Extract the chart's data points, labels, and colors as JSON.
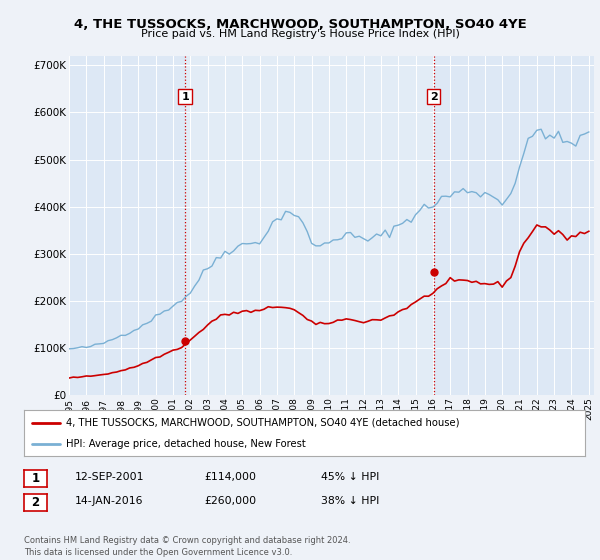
{
  "title": "4, THE TUSSOCKS, MARCHWOOD, SOUTHAMPTON, SO40 4YE",
  "subtitle": "Price paid vs. HM Land Registry's House Price Index (HPI)",
  "background_color": "#eef2f8",
  "plot_bg_color": "#dde8f5",
  "plot_bg_highlight": "#e8f0f8",
  "xlim_start": 1995.0,
  "xlim_end": 2025.3,
  "ylim_min": 0,
  "ylim_max": 720000,
  "yticks": [
    0,
    100000,
    200000,
    300000,
    400000,
    500000,
    600000,
    700000
  ],
  "ytick_labels": [
    "£0",
    "£100K",
    "£200K",
    "£300K",
    "£400K",
    "£500K",
    "£600K",
    "£700K"
  ],
  "xtick_years": [
    1995,
    1996,
    1997,
    1998,
    1999,
    2000,
    2001,
    2002,
    2003,
    2004,
    2005,
    2006,
    2007,
    2008,
    2009,
    2010,
    2011,
    2012,
    2013,
    2014,
    2015,
    2016,
    2017,
    2018,
    2019,
    2020,
    2021,
    2022,
    2023,
    2024,
    2025
  ],
  "hpi_color": "#7ab0d4",
  "price_color": "#cc0000",
  "vline_color": "#cc0000",
  "sale1_x": 2001.7,
  "sale1_y": 114000,
  "sale2_x": 2016.04,
  "sale2_y": 260000,
  "legend_line1": "4, THE TUSSOCKS, MARCHWOOD, SOUTHAMPTON, SO40 4YE (detached house)",
  "legend_line2": "HPI: Average price, detached house, New Forest",
  "table_row1": [
    "1",
    "12-SEP-2001",
    "£114,000",
    "45% ↓ HPI"
  ],
  "table_row2": [
    "2",
    "14-JAN-2016",
    "£260,000",
    "38% ↓ HPI"
  ],
  "footer": "Contains HM Land Registry data © Crown copyright and database right 2024.\nThis data is licensed under the Open Government Licence v3.0.",
  "hpi_years": [
    1995.0,
    1995.25,
    1995.5,
    1995.75,
    1996.0,
    1996.25,
    1996.5,
    1996.75,
    1997.0,
    1997.25,
    1997.5,
    1997.75,
    1998.0,
    1998.25,
    1998.5,
    1998.75,
    1999.0,
    1999.25,
    1999.5,
    1999.75,
    2000.0,
    2000.25,
    2000.5,
    2000.75,
    2001.0,
    2001.25,
    2001.5,
    2001.75,
    2002.0,
    2002.25,
    2002.5,
    2002.75,
    2003.0,
    2003.25,
    2003.5,
    2003.75,
    2004.0,
    2004.25,
    2004.5,
    2004.75,
    2005.0,
    2005.25,
    2005.5,
    2005.75,
    2006.0,
    2006.25,
    2006.5,
    2006.75,
    2007.0,
    2007.25,
    2007.5,
    2007.75,
    2008.0,
    2008.25,
    2008.5,
    2008.75,
    2009.0,
    2009.25,
    2009.5,
    2009.75,
    2010.0,
    2010.25,
    2010.5,
    2010.75,
    2011.0,
    2011.25,
    2011.5,
    2011.75,
    2012.0,
    2012.25,
    2012.5,
    2012.75,
    2013.0,
    2013.25,
    2013.5,
    2013.75,
    2014.0,
    2014.25,
    2014.5,
    2014.75,
    2015.0,
    2015.25,
    2015.5,
    2015.75,
    2016.0,
    2016.25,
    2016.5,
    2016.75,
    2017.0,
    2017.25,
    2017.5,
    2017.75,
    2018.0,
    2018.25,
    2018.5,
    2018.75,
    2019.0,
    2019.25,
    2019.5,
    2019.75,
    2020.0,
    2020.25,
    2020.5,
    2020.75,
    2021.0,
    2021.25,
    2021.5,
    2021.75,
    2022.0,
    2022.25,
    2022.5,
    2022.75,
    2023.0,
    2023.25,
    2023.5,
    2023.75,
    2024.0,
    2024.25,
    2024.5,
    2024.75,
    2025.0
  ],
  "hpi_values": [
    97000,
    98500,
    99000,
    100000,
    101000,
    103000,
    105000,
    107000,
    110000,
    114000,
    118000,
    122000,
    126000,
    130000,
    134000,
    138000,
    142000,
    148000,
    154000,
    160000,
    166000,
    172000,
    178000,
    184000,
    190000,
    196000,
    202000,
    208000,
    218000,
    232000,
    246000,
    258000,
    268000,
    278000,
    288000,
    296000,
    304000,
    308000,
    312000,
    315000,
    318000,
    320000,
    322000,
    325000,
    328000,
    338000,
    350000,
    362000,
    372000,
    382000,
    388000,
    390000,
    385000,
    375000,
    360000,
    342000,
    326000,
    318000,
    315000,
    318000,
    325000,
    330000,
    335000,
    338000,
    340000,
    338000,
    335000,
    332000,
    330000,
    330000,
    332000,
    334000,
    338000,
    342000,
    348000,
    354000,
    360000,
    366000,
    372000,
    378000,
    384000,
    390000,
    396000,
    400000,
    404000,
    410000,
    416000,
    420000,
    424000,
    428000,
    430000,
    432000,
    434000,
    434000,
    432000,
    430000,
    428000,
    424000,
    420000,
    416000,
    412000,
    418000,
    430000,
    455000,
    485000,
    510000,
    530000,
    548000,
    560000,
    565000,
    560000,
    552000,
    545000,
    540000,
    538000,
    536000,
    535000,
    538000,
    542000,
    548000,
    552000
  ],
  "price_years": [
    1995.0,
    1995.25,
    1995.5,
    1995.75,
    1996.0,
    1996.25,
    1996.5,
    1996.75,
    1997.0,
    1997.25,
    1997.5,
    1997.75,
    1998.0,
    1998.25,
    1998.5,
    1998.75,
    1999.0,
    1999.25,
    1999.5,
    1999.75,
    2000.0,
    2000.25,
    2000.5,
    2000.75,
    2001.0,
    2001.25,
    2001.5,
    2001.75,
    2002.0,
    2002.25,
    2002.5,
    2002.75,
    2003.0,
    2003.25,
    2003.5,
    2003.75,
    2004.0,
    2004.25,
    2004.5,
    2004.75,
    2005.0,
    2005.25,
    2005.5,
    2005.75,
    2006.0,
    2006.25,
    2006.5,
    2006.75,
    2007.0,
    2007.25,
    2007.5,
    2007.75,
    2008.0,
    2008.25,
    2008.5,
    2008.75,
    2009.0,
    2009.25,
    2009.5,
    2009.75,
    2010.0,
    2010.25,
    2010.5,
    2010.75,
    2011.0,
    2011.25,
    2011.5,
    2011.75,
    2012.0,
    2012.25,
    2012.5,
    2012.75,
    2013.0,
    2013.25,
    2013.5,
    2013.75,
    2014.0,
    2014.25,
    2014.5,
    2014.75,
    2015.0,
    2015.25,
    2015.5,
    2015.75,
    2016.0,
    2016.25,
    2016.5,
    2016.75,
    2017.0,
    2017.25,
    2017.5,
    2017.75,
    2018.0,
    2018.25,
    2018.5,
    2018.75,
    2019.0,
    2019.25,
    2019.5,
    2019.75,
    2020.0,
    2020.25,
    2020.5,
    2020.75,
    2021.0,
    2021.25,
    2021.5,
    2021.75,
    2022.0,
    2022.25,
    2022.5,
    2022.75,
    2023.0,
    2023.25,
    2023.5,
    2023.75,
    2024.0,
    2024.25,
    2024.5,
    2024.75,
    2025.0
  ],
  "price_values": [
    36000,
    37000,
    37500,
    38000,
    39000,
    40000,
    41000,
    42000,
    43500,
    45000,
    47000,
    49000,
    51000,
    53500,
    56000,
    59000,
    62000,
    66000,
    70000,
    74000,
    78000,
    82000,
    86000,
    90000,
    94000,
    98000,
    102000,
    108000,
    116000,
    124000,
    132000,
    140000,
    148000,
    156000,
    162000,
    166000,
    170000,
    172000,
    174000,
    175000,
    176000,
    176500,
    177000,
    177500,
    178000,
    180000,
    183000,
    186000,
    188000,
    188000,
    187000,
    184000,
    180000,
    174000,
    167000,
    160000,
    154000,
    150000,
    149000,
    150000,
    153000,
    156000,
    158000,
    159000,
    160000,
    159000,
    158000,
    157000,
    156000,
    157000,
    158000,
    159000,
    161000,
    163000,
    167000,
    171000,
    176000,
    181000,
    186000,
    191000,
    196000,
    201000,
    207000,
    213000,
    218000,
    224000,
    230000,
    235000,
    238000,
    240000,
    241000,
    241000,
    241000,
    240000,
    239000,
    238000,
    237000,
    236000,
    235000,
    234000,
    234000,
    240000,
    254000,
    275000,
    300000,
    322000,
    338000,
    350000,
    358000,
    360000,
    356000,
    350000,
    344000,
    340000,
    338000,
    337000,
    337000,
    339000,
    342000,
    346000,
    348000
  ]
}
